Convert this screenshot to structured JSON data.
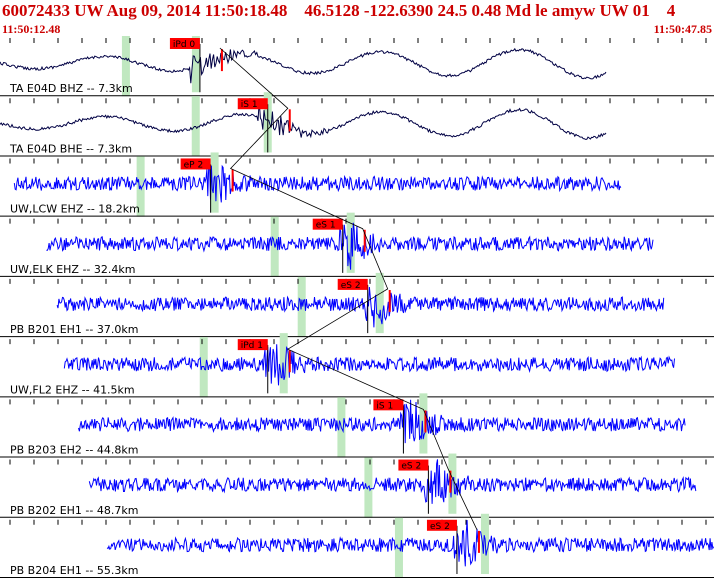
{
  "header": {
    "title": "60072433 UW Aug 09, 2014 11:50:18.48    46.5128 -122.6390 24.5 0.48 Md le amyw UW 01    4",
    "time_start": "11:50:12.48",
    "time_end": "11:50:47.85"
  },
  "colors": {
    "header_text": "#cc0000",
    "trace_short_period": "#0000ff",
    "trace_broadband": "#000044",
    "pick_flag": "#ff0000",
    "pick_window": "#c0e8c0"
  },
  "traces": [
    {
      "label": "TA E04D BHZ -- 7.3km",
      "kind": "broadband",
      "pick": "iPd 0",
      "start": 0.0,
      "end": 0.85,
      "pick_pos": 0.28
    },
    {
      "label": "TA E04D BHE -- 7.3km",
      "kind": "broadband",
      "pick": "iS 1",
      "start": 0.0,
      "end": 0.85,
      "pick_pos": 0.375
    },
    {
      "label": "UW,LCW EHZ -- 18.2km",
      "kind": "short",
      "pick": "eP 2",
      "start": 0.02,
      "end": 0.87,
      "pick_pos": 0.295
    },
    {
      "label": "UW,ELK EHZ -- 32.4km",
      "kind": "short",
      "pick": "eS 1",
      "start": 0.065,
      "end": 0.915,
      "pick_pos": 0.48
    },
    {
      "label": "PB B201 EH1 -- 37.0km",
      "kind": "short",
      "pick": "eS 2",
      "start": 0.08,
      "end": 0.93,
      "pick_pos": 0.515
    },
    {
      "label": "UW,FL2 EHZ -- 41.5km",
      "kind": "short",
      "pick": "iPd 1",
      "start": 0.09,
      "end": 0.945,
      "pick_pos": 0.375
    },
    {
      "label": "PB B203 EH2 -- 44.8km",
      "kind": "short",
      "pick": "iS 1",
      "start": 0.11,
      "end": 0.96,
      "pick_pos": 0.565
    },
    {
      "label": "PB B202 EH1 -- 48.7km",
      "kind": "short",
      "pick": "eS 2",
      "start": 0.125,
      "end": 0.975,
      "pick_pos": 0.6
    },
    {
      "label": "PB B204 EH1 -- 55.3km",
      "kind": "short",
      "pick": "eS 2",
      "start": 0.15,
      "end": 1.0,
      "pick_pos": 0.64
    }
  ]
}
